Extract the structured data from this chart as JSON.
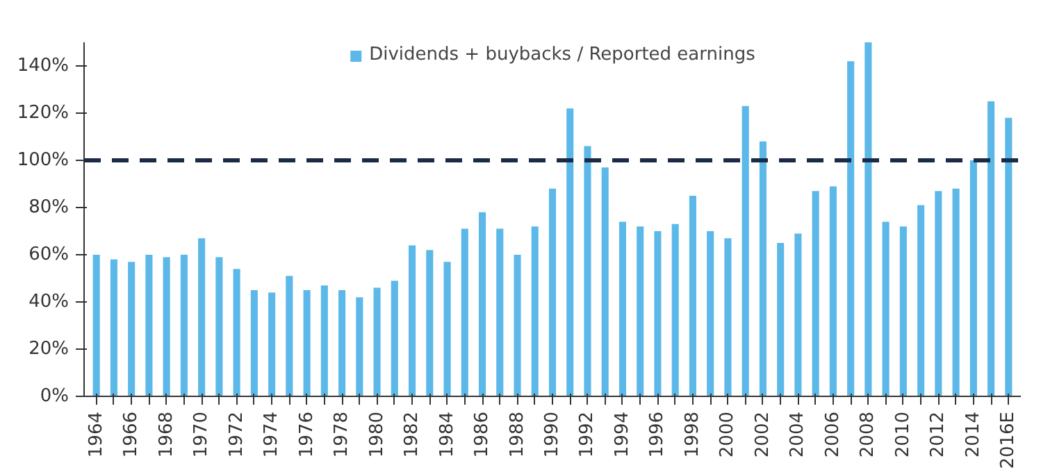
{
  "chart_data": {
    "type": "bar",
    "categories": [
      "1964",
      null,
      "1966",
      null,
      "1968",
      null,
      "1970",
      null,
      "1972",
      null,
      "1974",
      null,
      "1976",
      null,
      "1978",
      null,
      "1980",
      null,
      "1982",
      null,
      "1984",
      null,
      "1986",
      null,
      "1988",
      null,
      "1990",
      null,
      "1992",
      null,
      "1994",
      null,
      "1996",
      null,
      "1998",
      null,
      "2000",
      null,
      "2002",
      null,
      "2004",
      null,
      "2006",
      null,
      "2008",
      null,
      "2010",
      null,
      "2012",
      null,
      "2014",
      null,
      "2016E"
    ],
    "series": [
      {
        "name": "Dividends + buybacks / Reported earnings",
        "color": "#5bb8e8",
        "values": [
          60,
          58,
          57,
          60,
          59,
          60,
          67,
          59,
          54,
          45,
          44,
          51,
          45,
          47,
          45,
          42,
          46,
          49,
          64,
          62,
          57,
          71,
          78,
          71,
          60,
          72,
          88,
          122,
          106,
          97,
          74,
          72,
          70,
          73,
          85,
          70,
          67,
          123,
          108,
          65,
          69,
          87,
          89,
          142,
          150,
          74,
          72,
          81,
          87,
          88,
          100,
          125,
          118
        ]
      }
    ],
    "ylim": [
      0,
      150
    ],
    "yticks": [
      {
        "value": 0,
        "label": "0%"
      },
      {
        "value": 20,
        "label": "20%"
      },
      {
        "value": 40,
        "label": "40%"
      },
      {
        "value": 60,
        "label": "60%"
      },
      {
        "value": 80,
        "label": "80%"
      },
      {
        "value": 100,
        "label": "100%"
      },
      {
        "value": 120,
        "label": "120%"
      },
      {
        "value": 140,
        "label": "140%"
      }
    ],
    "ref_lines": [
      {
        "axis": "y",
        "value": 100,
        "label": null,
        "color": "#1a2b45",
        "line_style": "dashed"
      }
    ],
    "grid": false,
    "legend": "top"
  }
}
